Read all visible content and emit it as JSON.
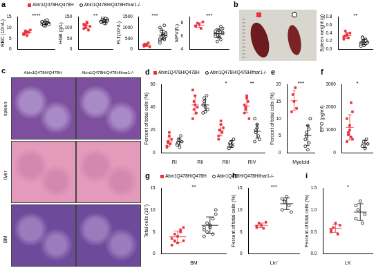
{
  "chart_data": [
    {
      "type": "scatter",
      "panel": "a",
      "legend": "top",
      "y_label": "RBC (10¹²/L)",
      "ylim": [
        0,
        15
      ],
      "yticks": [
        0,
        5,
        10,
        15
      ],
      "categories": [
        null
      ],
      "annotations": [
        "****"
      ],
      "series": [
        {
          "name": "Abin1Q478H/Q478H",
          "color": "#e8323c",
          "marker": "square",
          "values": [
            [
              7.2,
              8.5,
              6.3,
              7.8,
              8.9,
              6.8,
              7.5,
              8.1
            ]
          ],
          "mean": [
            7.6
          ],
          "sd": [
            0.9
          ]
        },
        {
          "name": "Abin1Q478H/Q478HIfnar1-/-",
          "color": "#000000",
          "marker": "open_circle",
          "values": [
            [
              11.5,
              12.3,
              10.8,
              12.9,
              11.9,
              12.5,
              11.2,
              13.1,
              12.0,
              11.7,
              12.7,
              10.9,
              12.2,
              13.4,
              11.4,
              12.6,
              11.8,
              12.4
            ]
          ],
          "mean": [
            12.1
          ],
          "sd": [
            0.7
          ]
        }
      ]
    },
    {
      "type": "scatter",
      "y_label": "HGB (g/L)",
      "ylim": [
        0,
        150
      ],
      "yticks": [
        0,
        50,
        100,
        150
      ],
      "categories": [
        null
      ],
      "annotations": [
        "**"
      ],
      "series": [
        {
          "name": "Abin1Q478H/Q478H",
          "color": "#e8323c",
          "marker": "square",
          "values": [
            [
              95,
              110,
              120,
              88,
              105,
              115,
              100,
              125
            ]
          ],
          "mean": [
            107
          ],
          "sd": [
            12
          ]
        },
        {
          "name": "Abin1Q478H/Q478HIfnar1-/-",
          "color": "#000000",
          "marker": "open_circle",
          "values": [
            [
              125,
              130,
              140,
              118,
              135,
              128,
              145,
              122,
              132,
              138,
              127,
              133,
              120,
              142,
              130,
              126,
              136,
              131
            ]
          ],
          "mean": [
            131
          ],
          "sd": [
            7
          ]
        }
      ]
    },
    {
      "type": "scatter",
      "y_label": "PLT(10⁹/L)",
      "ylim": [
        0,
        1500
      ],
      "yticks": [
        0,
        500,
        1000,
        1500
      ],
      "categories": [
        null
      ],
      "annotations": [
        "***"
      ],
      "series": [
        {
          "name": "Abin1Q478H/Q478H",
          "color": "#e8323c",
          "marker": "square",
          "values": [
            [
              150,
              250,
              200,
              300,
              120,
              220,
              180
            ]
          ],
          "mean": [
            203
          ],
          "sd": [
            60
          ]
        },
        {
          "name": "Abin1Q478H/Q478HIfnar1-/-",
          "color": "#000000",
          "marker": "open_circle",
          "values": [
            [
              400,
              550,
              700,
              1100,
              600,
              480,
              900,
              650,
              520,
              760,
              300,
              820,
              580,
              450,
              690,
              1000,
              560,
              620
            ]
          ],
          "mean": [
            651
          ],
          "sd": [
            210
          ]
        }
      ]
    },
    {
      "type": "scatter",
      "y_label": "MPV(fL)",
      "ylim": [
        4,
        9
      ],
      "yticks": [
        4,
        6,
        8
      ],
      "categories": [
        null
      ],
      "annotations": [
        "***"
      ],
      "series": [
        {
          "name": "Abin1Q478H/Q478H",
          "color": "#e8323c",
          "marker": "square",
          "values": [
            [
              7.5,
              8.0,
              7.8,
              7.2,
              8.2,
              7.6
            ]
          ],
          "mean": [
            7.7
          ],
          "sd": [
            0.35
          ]
        },
        {
          "name": "Abin1Q478H/Q478HIfnar1-/-",
          "color": "#000000",
          "marker": "open_circle",
          "values": [
            [
              6.5,
              7.0,
              6.0,
              5.5,
              7.2,
              6.8,
              6.2,
              5.8,
              7.5,
              6.6,
              6.3,
              5.2,
              6.9,
              7.1,
              6.4,
              6.0
            ]
          ],
          "mean": [
            6.4
          ],
          "sd": [
            0.6
          ]
        }
      ]
    },
    {
      "type": "scatter",
      "y_label": "Spleen weight (g)",
      "ylim": [
        0,
        0.8
      ],
      "yticks": [
        {
          "value": 0,
          "label": "0.0"
        },
        0.2,
        0.4,
        0.6,
        0.8
      ],
      "categories": [
        null
      ],
      "annotations": [
        "**"
      ],
      "series": [
        {
          "name": "Abin1Q478H/Q478H",
          "color": "#e8323c",
          "marker": "square",
          "values": [
            [
              0.3,
              0.45,
              0.35,
              0.28,
              0.4,
              0.25,
              0.33,
              0.38
            ]
          ],
          "mean": [
            0.34
          ],
          "sd": [
            0.07
          ]
        },
        {
          "name": "Abin1Q478H/Q478HIfnar1-/-",
          "color": "#000000",
          "marker": "open_circle",
          "values": [
            [
              0.15,
              0.2,
              0.1,
              0.25,
              0.18,
              0.12,
              0.3,
              0.22,
              0.14,
              0.16,
              0.08,
              0.28,
              0.19,
              0.21
            ]
          ],
          "mean": [
            0.18
          ],
          "sd": [
            0.06
          ]
        }
      ]
    },
    {
      "type": "scatter",
      "panel": "d",
      "legend": "top",
      "y_label": "Percent of total cells (%)",
      "ylim": [
        0,
        60
      ],
      "yticks": [
        0,
        20,
        40,
        60
      ],
      "categories": [
        "RI",
        "RII",
        "RIII",
        "RIV"
      ],
      "annotations": [
        null,
        null,
        "*",
        "**"
      ],
      "series": [
        {
          "name": "Abin1Q478H/Q478H",
          "color": "#e8323c",
          "marker": "square",
          "values": [
            [
              5,
              10,
              15,
              8,
              12,
              6,
              9,
              18
            ],
            [
              30,
              45,
              50,
              35,
              40,
              55,
              38,
              42
            ],
            [
              15,
              20,
              25,
              18,
              22,
              12,
              20,
              28
            ],
            [
              35,
              40,
              50,
              45,
              30,
              42,
              38,
              48
            ]
          ],
          "mean": [
            10,
            42,
            20,
            41
          ],
          "sd": [
            4,
            8,
            5,
            6
          ]
        },
        {
          "name": "Abin1Q478H/Q478HIfnar1-/-",
          "color": "#000000",
          "marker": "open_circle",
          "values": [
            [
              8,
              12,
              5,
              15,
              10,
              7,
              9,
              11
            ],
            [
              35,
              45,
              40,
              50,
              38,
              42,
              48,
              36
            ],
            [
              5,
              8,
              10,
              6,
              12,
              4,
              9,
              7
            ],
            [
              10,
              20,
              25,
              15,
              12,
              30,
              18,
              22
            ]
          ],
          "mean": [
            10,
            42,
            8,
            19
          ],
          "sd": [
            3,
            5,
            3,
            6
          ]
        }
      ]
    },
    {
      "type": "scatter",
      "panel": "e",
      "y_label": "Percent of total cells (%)",
      "ylim": [
        0,
        20
      ],
      "yticks": [
        0,
        5,
        10,
        15,
        20
      ],
      "categories": [
        "Myeloid"
      ],
      "annotations": [
        "***"
      ],
      "series": [
        {
          "name": "Abin1Q478H/Q478H",
          "color": "#e8323c",
          "marker": "square",
          "values": [
            [
              12,
              17,
              15,
              19,
              13
            ]
          ],
          "mean": [
            15.2
          ],
          "sd": [
            2.9
          ]
        },
        {
          "name": "Abin1Q478H/Q478HIfnar1-/-",
          "color": "#000000",
          "marker": "open_circle",
          "values": [
            [
              2,
              5,
              8,
              3,
              10,
              4,
              6,
              1,
              7
            ]
          ],
          "mean": [
            5.1
          ],
          "sd": [
            2.9
          ]
        }
      ]
    },
    {
      "type": "scatter",
      "panel": "f",
      "y_label": "EPO (pg/ml)",
      "ylim": [
        0,
        3000
      ],
      "yticks": [
        0,
        1000,
        2000,
        3000
      ],
      "categories": [
        null
      ],
      "annotations": [
        "*"
      ],
      "series": [
        {
          "name": "Abin1Q478H/Q478H",
          "color": "#e8323c",
          "marker": "square",
          "values": [
            [
              500,
              800,
              1200,
              2200,
              600,
              1500,
              900,
              1000,
              700,
              1800
            ]
          ],
          "mean": [
            1120
          ],
          "sd": [
            550
          ]
        },
        {
          "name": "Abin1Q478H/Q478HIfnar1-/-",
          "color": "#000000",
          "marker": "open_circle",
          "values": [
            [
              300,
              500,
              200,
              600,
              400
            ]
          ],
          "mean": [
            400
          ],
          "sd": [
            160
          ]
        }
      ]
    },
    {
      "type": "scatter",
      "panel": "g",
      "legend": "top",
      "y_label": "Total cells (10⁷)",
      "ylim": [
        0,
        15
      ],
      "yticks": [
        0,
        5,
        10,
        15
      ],
      "categories": [
        "BM"
      ],
      "annotations": [
        "**"
      ],
      "series": [
        {
          "name": "Abin1Q478H/Q478H",
          "color": "#e8323c",
          "marker": "square",
          "values": [
            [
              2,
              3,
              4,
              5,
              6,
              3.5,
              4.5,
              2.5,
              5.5,
              3
            ]
          ],
          "mean": [
            3.9
          ],
          "sd": [
            1.3
          ]
        },
        {
          "name": "Abin1Q478H/Q478HIfnar1-/-",
          "color": "#000000",
          "marker": "open_circle",
          "values": [
            [
              4,
              5,
              6,
              8,
              10,
              5.5,
              7,
              6.5,
              4.5,
              9,
              6
            ]
          ],
          "mean": [
            6.5
          ],
          "sd": [
            1.9
          ]
        }
      ]
    },
    {
      "type": "scatter",
      "panel": "h",
      "y_label": "Percent of total cells (%)",
      "ylim": [
        0,
        15
      ],
      "yticks": [
        0,
        5,
        10,
        15
      ],
      "categories": [
        "Lin⁻"
      ],
      "annotations": [
        "***"
      ],
      "series": [
        {
          "name": "Abin1Q478H/Q478H",
          "color": "#e8323c",
          "marker": "square",
          "values": [
            [
              6,
              7,
              6.5,
              5.8,
              7.2,
              6.3
            ]
          ],
          "mean": [
            6.5
          ],
          "sd": [
            0.5
          ]
        },
        {
          "name": "Abin1Q478H/Q478HIfnar1-/-",
          "color": "#000000",
          "marker": "open_circle",
          "values": [
            [
              10,
              12,
              13,
              11,
              9.5,
              12.5,
              11.8
            ]
          ],
          "mean": [
            11.4
          ],
          "sd": [
            1.3
          ]
        }
      ]
    },
    {
      "type": "scatter",
      "panel": "i",
      "y_label": "Percent of total cells (%)",
      "ylim": [
        0,
        1.5
      ],
      "yticks": [
        {
          "value": 0,
          "label": "0.0"
        },
        0.5,
        {
          "value": 1,
          "label": "1.0"
        },
        1.5
      ],
      "categories": [
        "LK"
      ],
      "annotations": [
        "*"
      ],
      "series": [
        {
          "name": "Abin1Q478H/Q478H",
          "color": "#e8323c",
          "marker": "square",
          "values": [
            [
              0.5,
              0.6,
              0.7,
              0.45,
              0.65,
              0.55
            ]
          ],
          "mean": [
            0.58
          ],
          "sd": [
            0.09
          ]
        },
        {
          "name": "Abin1Q478H/Q478HIfnar1-/-",
          "color": "#000000",
          "marker": "open_circle",
          "values": [
            [
              0.8,
              1.0,
              1.2,
              0.7,
              0.9,
              1.1
            ]
          ],
          "mean": [
            0.95
          ],
          "sd": [
            0.19
          ]
        }
      ]
    }
  ],
  "photo_panel": "b",
  "histology": {
    "panel": "c",
    "columns": [
      "Abin1Q478H/Q478H",
      "Abin1Q478H/Q478HIfnar1-/-"
    ],
    "rows": [
      "spleen",
      "liver",
      "BM"
    ]
  }
}
